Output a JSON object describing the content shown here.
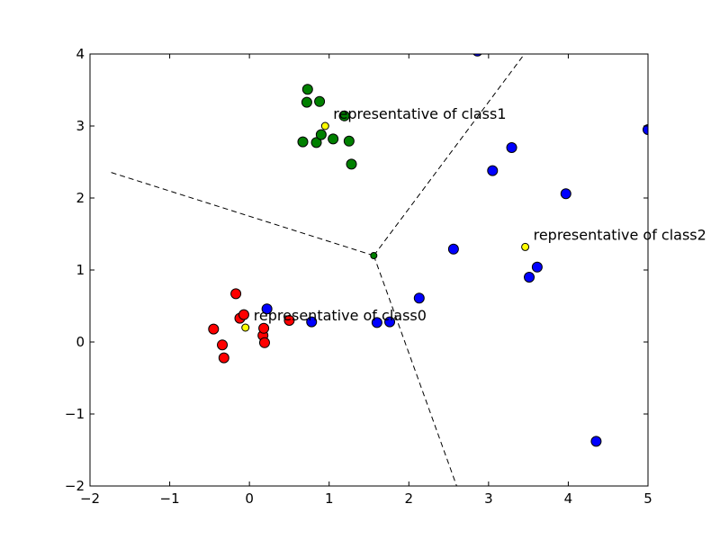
{
  "chart_data": {
    "type": "scatter",
    "xlim": [
      -2,
      5
    ],
    "ylim": [
      -2,
      4
    ],
    "xticks": [
      -2,
      -1,
      0,
      1,
      2,
      3,
      4,
      5
    ],
    "yticks": [
      -2,
      -1,
      0,
      1,
      2,
      3,
      4
    ],
    "xtick_labels": [
      "−2",
      "−1",
      "0",
      "1",
      "2",
      "3",
      "4",
      "5"
    ],
    "ytick_labels": [
      "−2",
      "−1",
      "0",
      "1",
      "2",
      "3",
      "4"
    ],
    "grid": false,
    "series": [
      {
        "color": "#ff0000",
        "points": [
          [
            -0.45,
            0.18
          ],
          [
            -0.34,
            -0.04
          ],
          [
            -0.32,
            -0.22
          ],
          [
            -0.17,
            0.67
          ],
          [
            -0.12,
            0.33
          ],
          [
            -0.07,
            0.38
          ],
          [
            0.17,
            0.09
          ],
          [
            0.18,
            0.19
          ],
          [
            0.19,
            -0.01
          ],
          [
            0.5,
            0.3
          ]
        ]
      },
      {
        "color": "#008000",
        "points": [
          [
            0.72,
            3.33
          ],
          [
            0.73,
            3.51
          ],
          [
            0.88,
            3.34
          ],
          [
            0.67,
            2.78
          ],
          [
            0.84,
            2.77
          ],
          [
            0.9,
            2.88
          ],
          [
            1.05,
            2.82
          ],
          [
            1.19,
            3.14
          ],
          [
            1.25,
            2.79
          ],
          [
            1.28,
            2.47
          ]
        ]
      },
      {
        "color": "#0000ff",
        "points": [
          [
            0.22,
            0.46
          ],
          [
            0.78,
            0.28
          ],
          [
            1.6,
            0.27
          ],
          [
            1.76,
            0.28
          ],
          [
            2.13,
            0.61
          ],
          [
            2.56,
            1.29
          ],
          [
            2.86,
            4.04
          ],
          [
            3.05,
            2.38
          ],
          [
            3.29,
            2.7
          ],
          [
            3.51,
            0.9
          ],
          [
            3.61,
            1.04
          ],
          [
            3.97,
            2.06
          ],
          [
            4.35,
            -1.38
          ],
          [
            5.0,
            2.95
          ]
        ]
      }
    ],
    "representatives": [
      {
        "x": -0.05,
        "y": 0.2,
        "label": "representative of class0"
      },
      {
        "x": 0.95,
        "y": 3.0,
        "label": "representative of class1"
      },
      {
        "x": 3.46,
        "y": 1.32,
        "label": "representative of class2"
      }
    ],
    "representative_color": "#ffff00",
    "center_point": {
      "x": 1.56,
      "y": 1.2,
      "color": "#008000"
    },
    "boundary_lines": [
      {
        "from": [
          1.56,
          1.2
        ],
        "to": [
          -1.75,
          2.36
        ]
      },
      {
        "from": [
          1.56,
          1.2
        ],
        "to": [
          3.45,
          4.0
        ]
      },
      {
        "from": [
          1.56,
          1.2
        ],
        "to": [
          2.6,
          -2.0
        ]
      }
    ]
  }
}
